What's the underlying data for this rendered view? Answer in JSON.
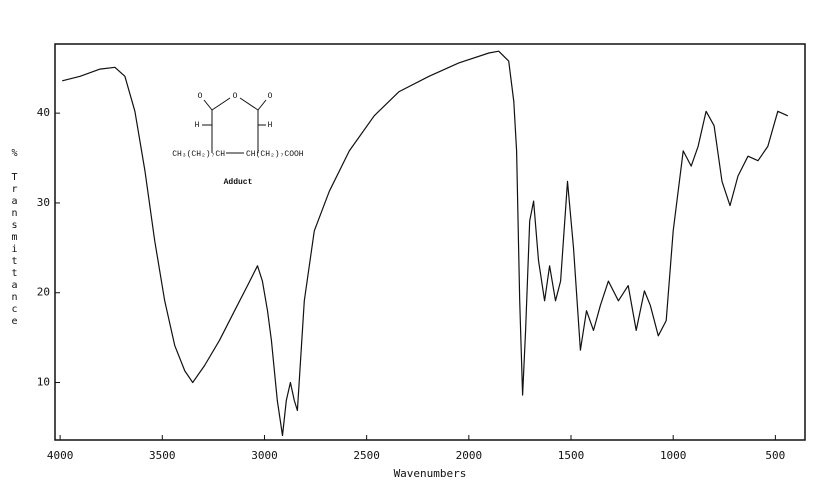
{
  "chart_data": {
    "type": "line",
    "x_label": "Wavenumbers",
    "y_label": "% Transmittance",
    "xlim": [
      4025,
      355
    ],
    "ylim": [
      3.6,
      47.7
    ],
    "xticks": [
      4000,
      3500,
      3000,
      2500,
      2000,
      1500,
      1000,
      {
        "value": 500,
        "label": "500"
      }
    ],
    "yticks": [
      10,
      20,
      30,
      40
    ],
    "grid": false,
    "annotations": [
      "O",
      "O",
      "O",
      "H",
      "H",
      "CH₃(CH₂)₇CH",
      "CH(CH₂)₇COOH",
      "Adduct"
    ],
    "series": [
      {
        "color": "#111111",
        "x": [
          3990,
          3902,
          3805,
          3732,
          3683,
          3634,
          3585,
          3537,
          3488,
          3439,
          3390,
          3351,
          3293,
          3220,
          3146,
          3083,
          3034,
          3010,
          2985,
          2966,
          2937,
          2912,
          2893,
          2873,
          2854,
          2839,
          2805,
          2756,
          2683,
          2585,
          2463,
          2341,
          2195,
          2049,
          1902,
          1854,
          1805,
          1780,
          1766,
          1751,
          1737,
          1722,
          1702,
          1683,
          1659,
          1629,
          1605,
          1576,
          1551,
          1517,
          1488,
          1454,
          1424,
          1390,
          1356,
          1317,
          1268,
          1220,
          1181,
          1141,
          1112,
          1073,
          1034,
          1000,
          951,
          912,
          878,
          839,
          800,
          761,
          722,
          683,
          634,
          585,
          537,
          488,
          439
        ],
        "values": [
          43.6,
          44.1,
          44.9,
          45.1,
          44.1,
          40.2,
          33.6,
          25.8,
          19.1,
          14.1,
          11.3,
          10,
          11.9,
          14.7,
          18,
          20.8,
          23,
          21.3,
          18,
          14.7,
          8,
          4.1,
          8,
          10,
          8,
          6.9,
          19.1,
          26.9,
          31.3,
          35.8,
          39.7,
          42.4,
          44.1,
          45.6,
          46.7,
          46.9,
          45.8,
          41.3,
          35.8,
          19.1,
          8.6,
          15.8,
          28,
          30.2,
          23.6,
          19.1,
          23,
          19.1,
          21.3,
          32.4,
          25,
          13.6,
          18,
          15.8,
          18.6,
          21.3,
          19.1,
          20.8,
          15.8,
          20.2,
          18.6,
          15.2,
          16.9,
          26.9,
          35.8,
          34.1,
          36.3,
          40.2,
          38.6,
          32.4,
          29.7,
          33,
          35.2,
          34.7,
          36.3,
          40.2,
          39.7
        ]
      }
    ]
  }
}
